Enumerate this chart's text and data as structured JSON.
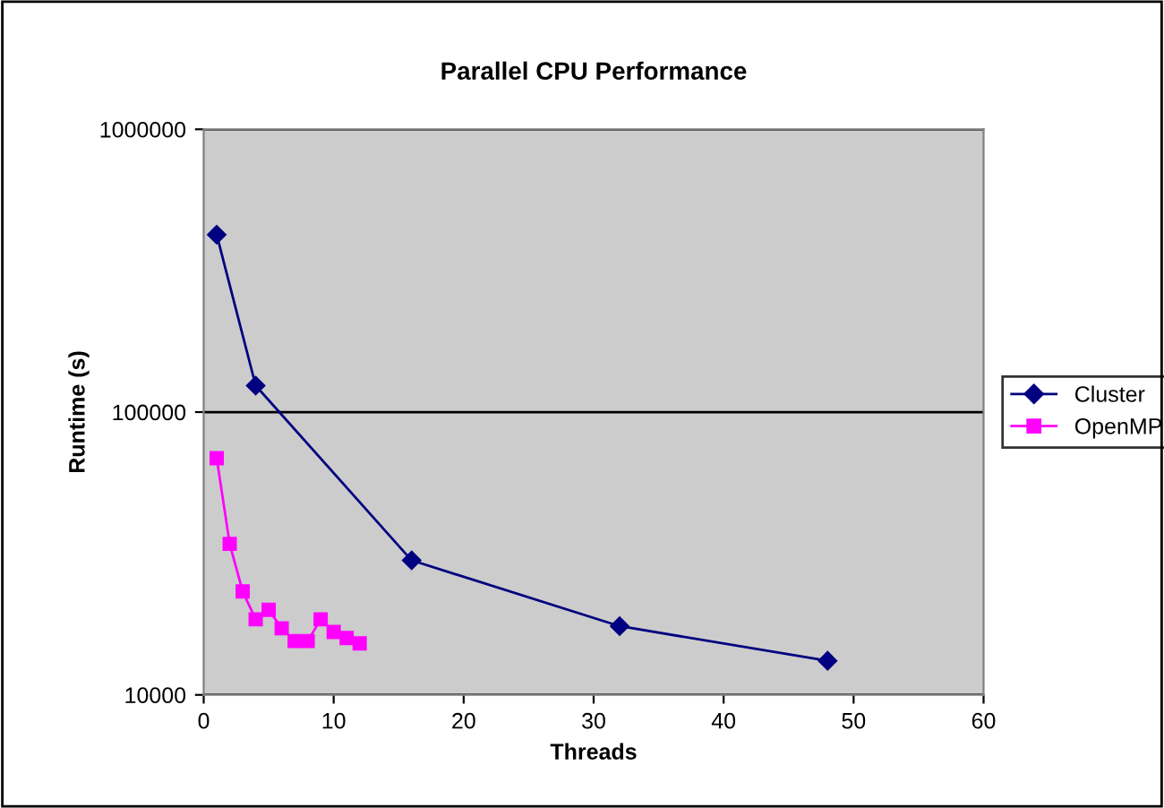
{
  "chart_data": {
    "type": "line",
    "title": "Parallel CPU Performance",
    "xlabel": "Threads",
    "ylabel": "Runtime (s)",
    "log": "y",
    "xlim": [
      0,
      60
    ],
    "xticks": [
      0,
      10,
      20,
      30,
      40,
      50,
      60
    ],
    "ylim": [
      10000,
      1000000
    ],
    "yticks": [
      10000,
      100000,
      1000000
    ],
    "grid": "y",
    "legend": "right",
    "series": [
      {
        "name": "Cluster",
        "color": "#000080",
        "marker": "diamond",
        "x": [
          1,
          4,
          16,
          32,
          48
        ],
        "values": [
          424000,
          124000,
          29900,
          17500,
          13200
        ]
      },
      {
        "name": "OpenMP",
        "color": "#ff00ff",
        "marker": "square",
        "x": [
          1,
          2,
          3,
          4,
          5,
          6,
          7,
          8,
          9,
          10,
          11,
          12
        ],
        "values": [
          68700,
          34200,
          23200,
          18500,
          20000,
          17200,
          15500,
          15500,
          18500,
          16700,
          15900,
          15200
        ]
      }
    ]
  }
}
